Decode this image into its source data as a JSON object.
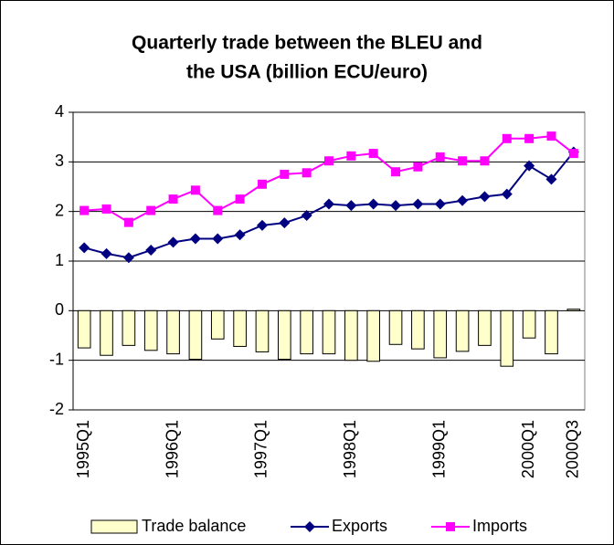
{
  "chart_data": {
    "type": "bar-line",
    "title": [
      "Quarterly trade between the BLEU and",
      "the USA (billion ECU/euro)"
    ],
    "categories": [
      "1995Q1",
      null,
      null,
      null,
      "1996Q1",
      null,
      null,
      null,
      "1997Q1",
      null,
      null,
      null,
      "1998Q1",
      null,
      null,
      null,
      "1999Q1",
      null,
      null,
      null,
      "2000Q1",
      null,
      "2000Q3"
    ],
    "series": [
      {
        "name": "Trade balance",
        "type": "bar",
        "color": "#ffffcc",
        "values": [
          -0.75,
          -0.9,
          -0.7,
          -0.8,
          -0.87,
          -0.98,
          -0.57,
          -0.72,
          -0.83,
          -0.98,
          -0.87,
          -0.87,
          -1.0,
          -1.02,
          -0.68,
          -0.77,
          -0.95,
          -0.82,
          -0.7,
          -1.12,
          -0.55,
          -0.87,
          0.03
        ]
      },
      {
        "name": "Exports",
        "type": "line",
        "marker": "diamond",
        "color": "#000080",
        "values": [
          1.27,
          1.15,
          1.07,
          1.22,
          1.38,
          1.45,
          1.45,
          1.53,
          1.72,
          1.77,
          1.92,
          2.15,
          2.12,
          2.15,
          2.12,
          2.15,
          2.15,
          2.22,
          2.3,
          2.35,
          2.92,
          2.65,
          3.2
        ]
      },
      {
        "name": "Imports",
        "type": "line",
        "marker": "square",
        "color": "#ff00ff",
        "values": [
          2.02,
          2.05,
          1.78,
          2.02,
          2.25,
          2.43,
          2.02,
          2.25,
          2.55,
          2.75,
          2.78,
          3.02,
          3.12,
          3.17,
          2.8,
          2.9,
          3.1,
          3.02,
          3.02,
          3.47,
          3.47,
          3.52,
          3.17
        ]
      }
    ],
    "ylim": [
      -2,
      4
    ],
    "yticks": [
      -2,
      -1,
      0,
      1,
      2,
      3,
      4
    ],
    "grid": true,
    "legend": "bottom"
  }
}
